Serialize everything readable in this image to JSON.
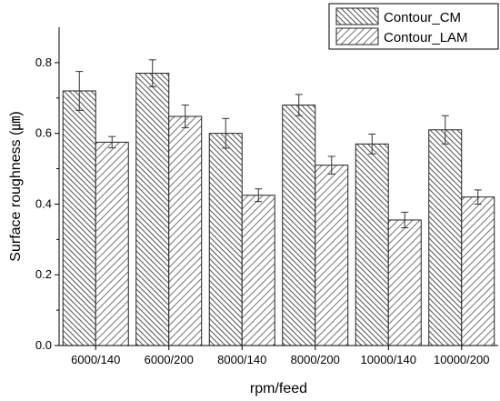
{
  "chart_data": {
    "type": "bar",
    "xlabel": "rpm/feed",
    "ylabel": "Surface roughness (㎛)",
    "categories": [
      "6000/140",
      "6000/200",
      "8000/140",
      "8000/200",
      "10000/140",
      "10000/200"
    ],
    "ylim": [
      0.0,
      0.9
    ],
    "yticks": [
      "0.0",
      "0.2",
      "0.4",
      "0.6",
      "0.8"
    ],
    "grid": false,
    "legend_position": "top-right",
    "series": [
      {
        "name": "Contour_CM",
        "values": [
          0.72,
          0.77,
          0.6,
          0.68,
          0.57,
          0.61
        ],
        "errors": [
          0.055,
          0.038,
          0.042,
          0.03,
          0.028,
          0.04
        ],
        "hatch": "backward-diagonal",
        "color": "#555555"
      },
      {
        "name": "Contour_LAM",
        "values": [
          0.575,
          0.648,
          0.425,
          0.51,
          0.355,
          0.42
        ],
        "errors": [
          0.016,
          0.032,
          0.018,
          0.025,
          0.022,
          0.02
        ],
        "hatch": "forward-diagonal",
        "color": "#777777"
      }
    ]
  }
}
